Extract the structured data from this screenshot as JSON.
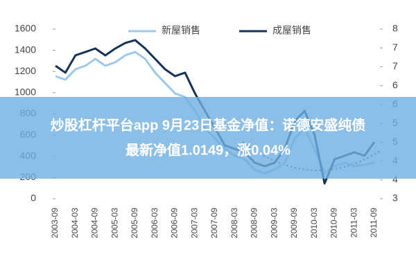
{
  "chart_data": {
    "type": "line",
    "categories": [
      "2003-09",
      null,
      "2004-03",
      null,
      "2004-09",
      null,
      "2005-03",
      null,
      "2005-09",
      null,
      "2006-03",
      null,
      "2006-09",
      null,
      "2007-03",
      null,
      "2007-09",
      null,
      "2008-03",
      null,
      "2008-09",
      null,
      "2009-03",
      null,
      "2009-09",
      null,
      "2010-03",
      null,
      "2010-09",
      null,
      "2011-03",
      null,
      "2011-09"
    ],
    "series": [
      {
        "name": "新屋销售",
        "color": "#9cc8ec",
        "values": [
          1156,
          1123,
          1221,
          1254,
          1319,
          1254,
          1287,
          1352,
          1384,
          1319,
          1189,
          1091,
          993,
          960,
          829,
          666,
          568,
          470,
          405,
          372,
          274,
          242,
          274,
          340,
          568,
          666,
          470,
          242,
          307,
          340,
          307,
          320,
          340
        ]
      },
      {
        "name": "成屋销售",
        "color": "#14325a",
        "values": [
          1254,
          1189,
          1352,
          1384,
          1417,
          1352,
          1417,
          1469,
          1496,
          1417,
          1319,
          1221,
          1156,
          1189,
          993,
          829,
          666,
          503,
          470,
          438,
          340,
          307,
          340,
          470,
          731,
          829,
          601,
          144,
          372,
          405,
          438,
          405,
          535
        ]
      }
    ],
    "ylim": [
      0,
      1600
    ],
    "yticks": [
      0,
      200,
      400,
      600,
      800,
      1000,
      1200,
      1400,
      1600
    ],
    "y2lim": [
      3,
      8
    ],
    "y2ticks": [
      3,
      {
        "value": 3.556,
        "label": "4"
      },
      {
        "value": 4.111,
        "label": "4"
      },
      {
        "value": 4.667,
        "label": "5"
      },
      {
        "value": 5.222,
        "label": "5"
      },
      {
        "value": 5.778,
        "label": "6"
      },
      {
        "value": 6.333,
        "label": "6"
      },
      {
        "value": 6.889,
        "label": "7"
      },
      {
        "value": 7.444,
        "label": "7"
      },
      8
    ]
  },
  "overlay": {
    "lines": [
      "炒股杠杆平台app 9月23日基金净值：诺德安盛纯债",
      "最新净值1.0149，涨0.04%"
    ]
  }
}
